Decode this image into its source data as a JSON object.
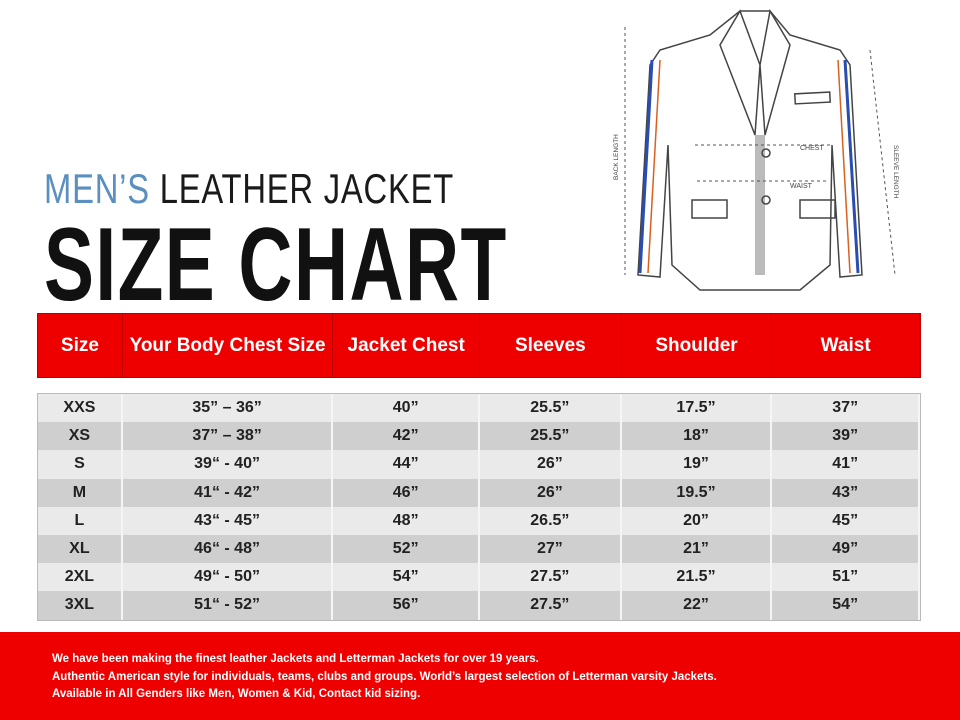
{
  "title": {
    "prefix": "MEN’S",
    "suffix": " LEATHER JACKET",
    "main": "SIZE CHART",
    "accent": "#5b8fc0"
  },
  "diagram": {
    "chest": "CHEST",
    "waist": "WAIST",
    "back_length": "BACK LENGTH",
    "sleeve_length": "SLEEVE LENGTH"
  },
  "table": {
    "headers": [
      "Size",
      "Your Body Chest Size",
      "Jacket Chest",
      "Sleeves",
      "Shoulder",
      "Waist"
    ],
    "rows": [
      [
        "XXS",
        "35” – 36”",
        "40”",
        "25.5”",
        "17.5”",
        "37”"
      ],
      [
        "XS",
        "37” – 38”",
        "42”",
        "25.5”",
        "18”",
        "39”"
      ],
      [
        "S",
        "39“ - 40”",
        "44”",
        "26”",
        "19”",
        "41”"
      ],
      [
        "M",
        "41“ - 42”",
        "46”",
        "26”",
        "19.5”",
        "43”"
      ],
      [
        "L",
        "43“ - 45”",
        "48”",
        "26.5”",
        "20”",
        "45”"
      ],
      [
        "XL",
        "46“ - 48”",
        "52”",
        "27”",
        "21”",
        "49”"
      ],
      [
        "2XL",
        "49“ - 50”",
        "54”",
        "27.5”",
        "21.5”",
        "51”"
      ],
      [
        "3XL",
        "51“ - 52”",
        "56”",
        "27.5”",
        "22”",
        "54”"
      ]
    ]
  },
  "footer": [
    "We have been making the finest leather Jackets and Letterman Jackets for over 19 years.",
    "Authentic American style for individuals, teams, clubs and groups. World’s largest selection of Letterman varsity Jackets.",
    "Available in All Genders like Men, Women & Kid, Contact kid sizing."
  ],
  "colors": {
    "header": "#ee0000",
    "footer": "#ee0000"
  }
}
